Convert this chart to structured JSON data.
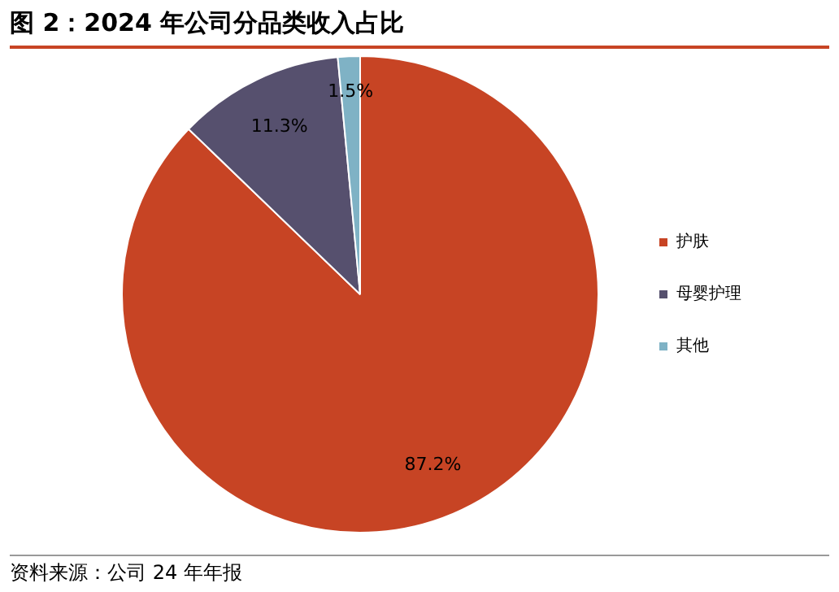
{
  "chart_data": {
    "type": "pie",
    "title": "图 2：2024 年公司分品类收入占比",
    "categories": [
      "护肤",
      "母婴护理",
      "其他"
    ],
    "values": [
      87.2,
      11.3,
      1.5
    ],
    "value_labels": [
      "87.2%",
      "11.3%",
      "1.5%"
    ],
    "colors": [
      "#c74424",
      "#56506e",
      "#7fb2c5"
    ],
    "legend": "right",
    "annotations": [
      "资料来源：公司 24 年年报"
    ]
  }
}
